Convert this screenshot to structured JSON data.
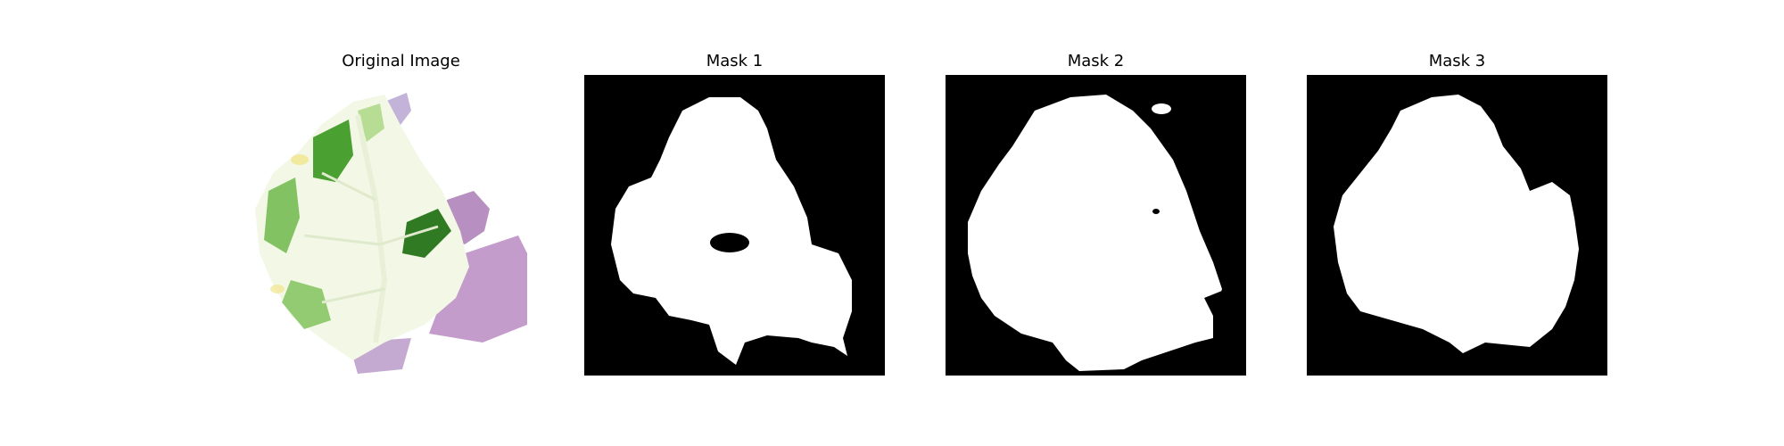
{
  "figure": {
    "panels": [
      {
        "title": "Original Image",
        "kind": "photo"
      },
      {
        "title": "Mask 1",
        "kind": "mask"
      },
      {
        "title": "Mask 2",
        "kind": "mask"
      },
      {
        "title": "Mask 3",
        "kind": "mask"
      }
    ]
  },
  "colors": {
    "mask_background": "#000000",
    "mask_foreground": "#ffffff",
    "leaf_green": "#4aa030",
    "leaf_pale": "#f3f8e6",
    "shadow_purple": "#b78fc0"
  }
}
